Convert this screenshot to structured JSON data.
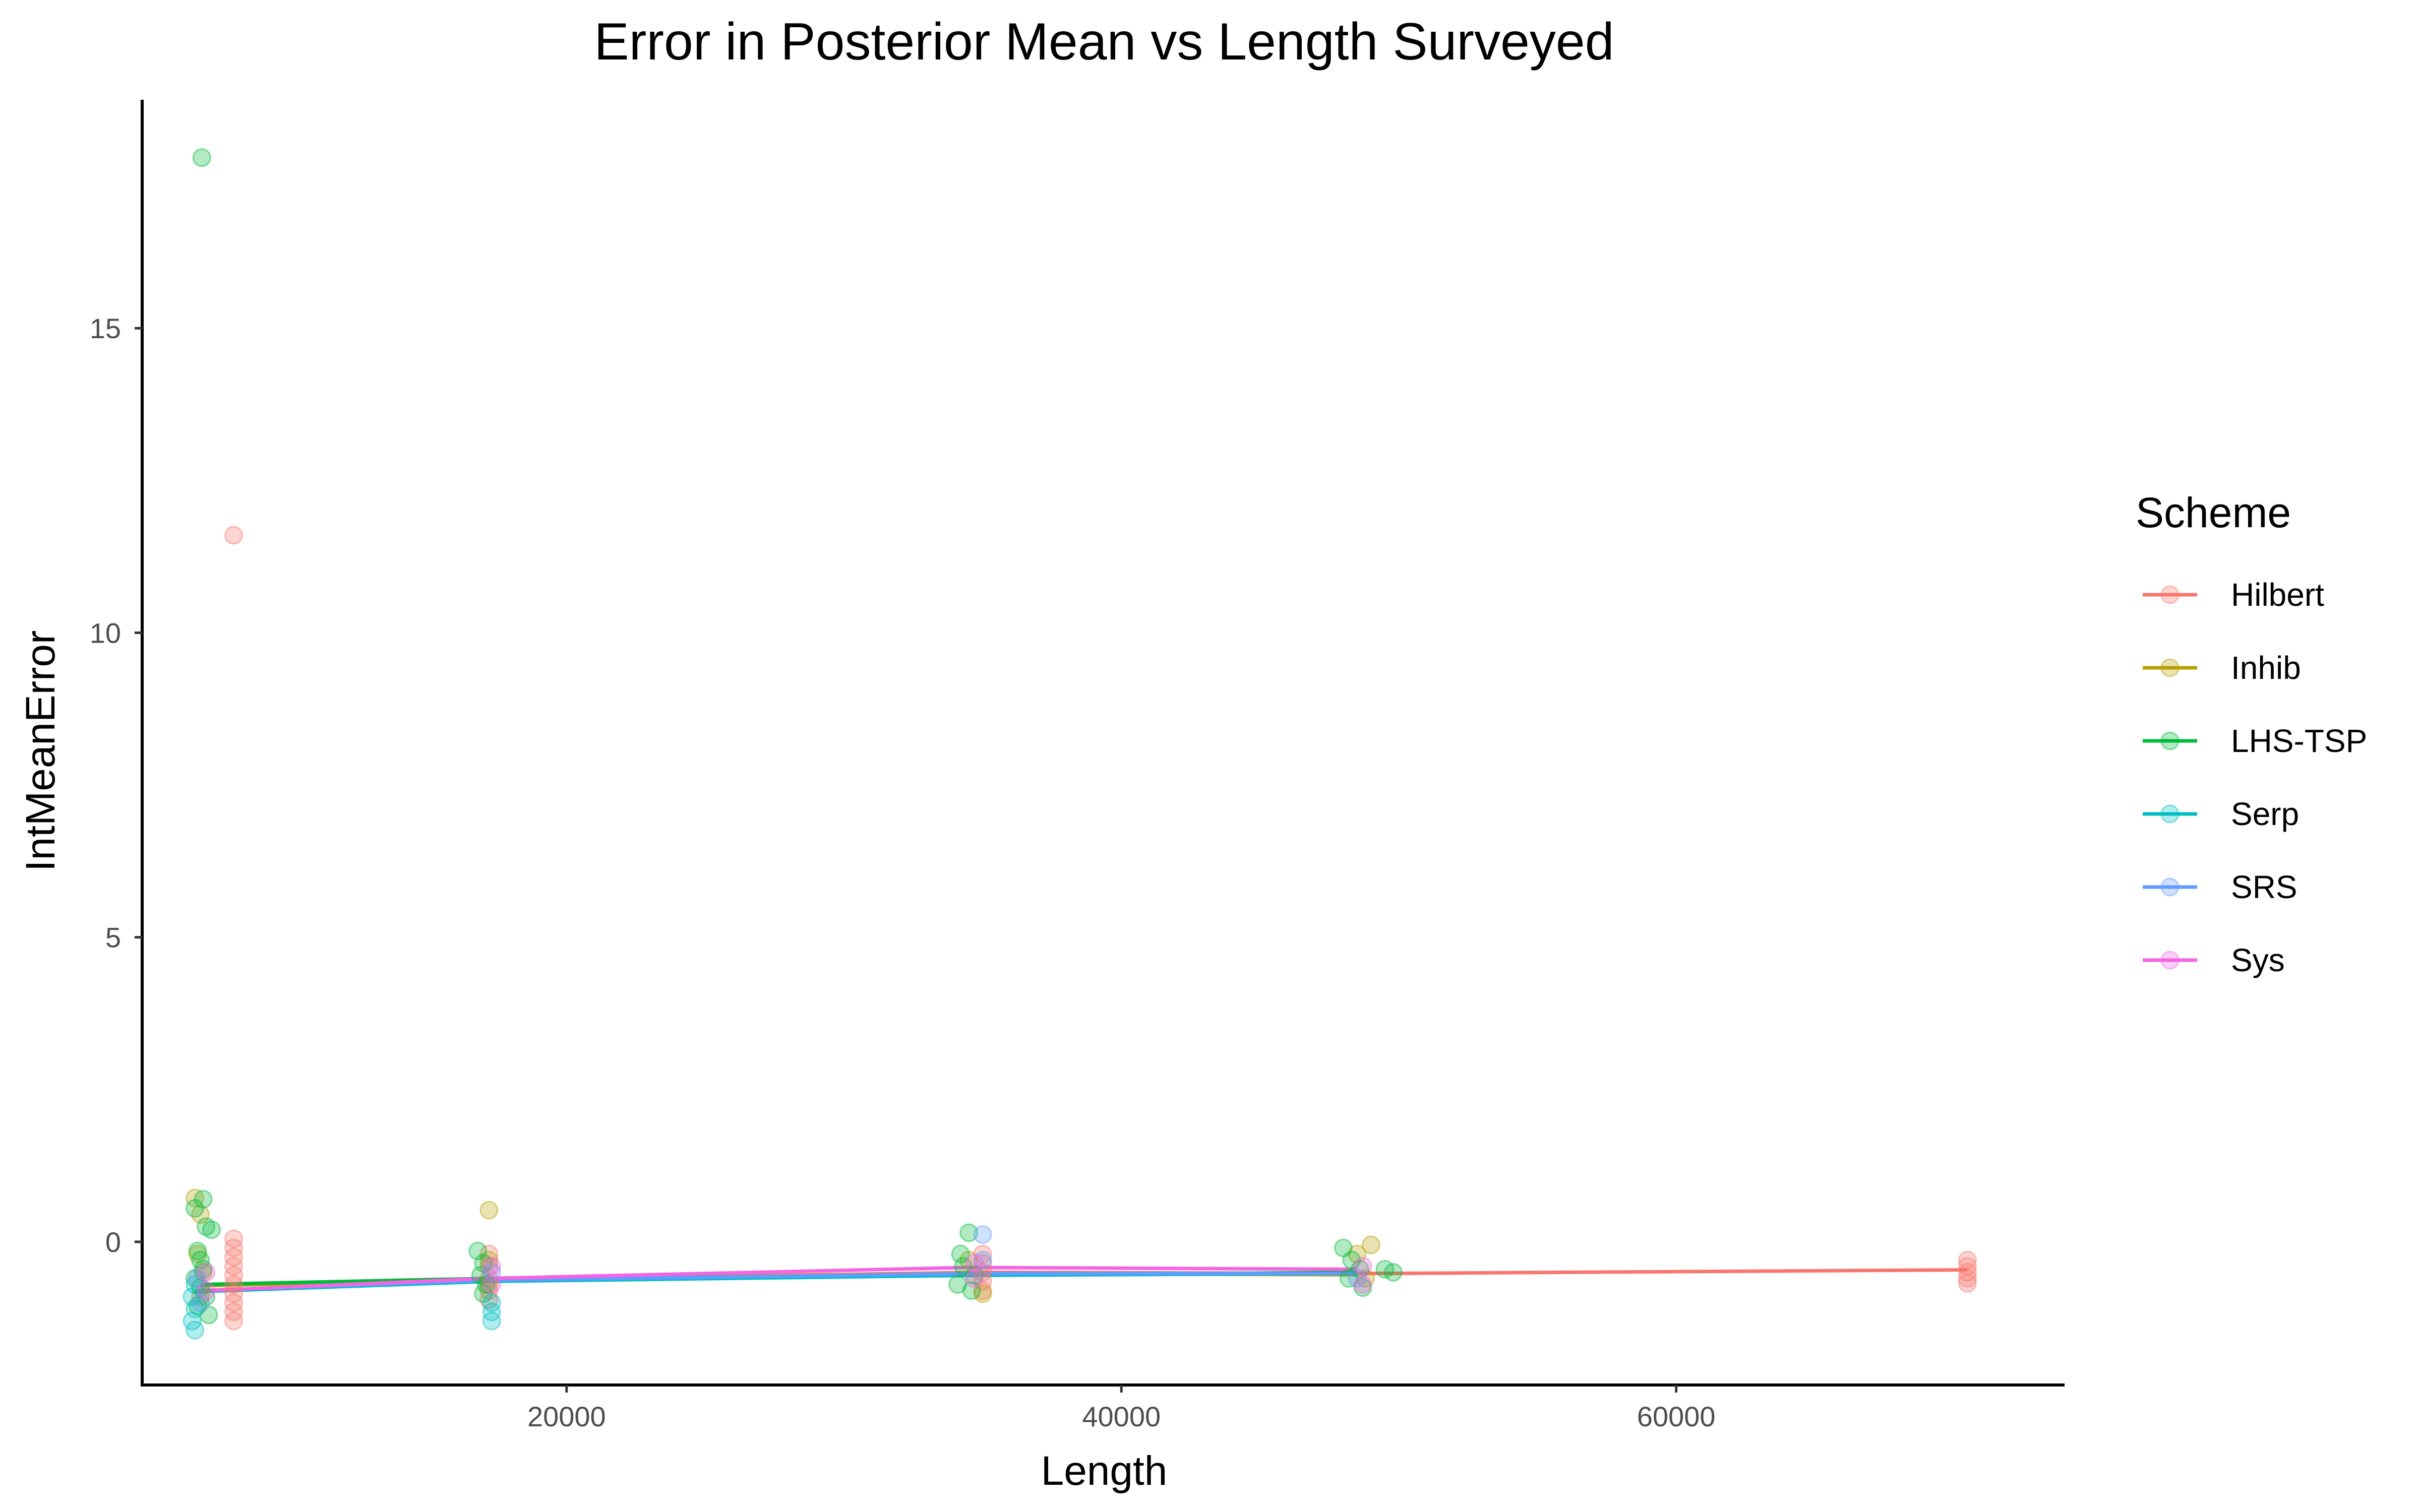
{
  "chart_data": {
    "type": "scatter",
    "title": "Error in Posterior Mean vs Length Surveyed",
    "xlabel": "Length",
    "ylabel": "IntMeanError",
    "xlim": [
      4700,
      74000
    ],
    "ylim": [
      -2.35,
      18.75
    ],
    "xticks": [
      20000,
      40000,
      60000
    ],
    "yticks": [
      0,
      5,
      10,
      15
    ],
    "xtick_labels": [
      "20000",
      "40000",
      "60000"
    ],
    "ytick_labels": [
      "0",
      "5",
      "10",
      "15"
    ],
    "grid": false,
    "legend": {
      "title": "Scheme",
      "position": "right"
    },
    "series": [
      {
        "name": "Hilbert",
        "color": "#F8766D",
        "line": [
          [
            8000,
            -0.78
          ],
          [
            17200,
            -0.62
          ],
          [
            35000,
            -0.5
          ],
          [
            49000,
            -0.52
          ],
          [
            70500,
            -0.46
          ]
        ],
        "points": [
          [
            8000,
            11.6
          ],
          [
            8000,
            0.05
          ],
          [
            8000,
            -0.1
          ],
          [
            8000,
            -0.25
          ],
          [
            8000,
            -0.4
          ],
          [
            8000,
            -0.55
          ],
          [
            8000,
            -0.7
          ],
          [
            8000,
            -0.85
          ],
          [
            8000,
            -1.0
          ],
          [
            8000,
            -1.15
          ],
          [
            8000,
            -1.3
          ],
          [
            17200,
            -0.2
          ],
          [
            17200,
            -0.4
          ],
          [
            17200,
            -0.6
          ],
          [
            17200,
            -0.8
          ],
          [
            17200,
            -0.95
          ],
          [
            35000,
            -0.2
          ],
          [
            35000,
            -0.35
          ],
          [
            35000,
            -0.5
          ],
          [
            35000,
            -0.65
          ],
          [
            35000,
            -0.8
          ],
          [
            70500,
            -0.3
          ],
          [
            70500,
            -0.4
          ],
          [
            70500,
            -0.5
          ],
          [
            70500,
            -0.6
          ],
          [
            70500,
            -0.68
          ]
        ]
      },
      {
        "name": "Inhib",
        "color": "#B79F00",
        "line": [
          [
            6800,
            -0.72
          ],
          [
            17200,
            -0.62
          ],
          [
            34500,
            -0.52
          ],
          [
            48500,
            -0.54
          ]
        ],
        "points": [
          [
            6600,
            0.72
          ],
          [
            6800,
            0.45
          ],
          [
            6700,
            -0.2
          ],
          [
            6900,
            -0.5
          ],
          [
            6800,
            -0.9
          ],
          [
            17200,
            0.52
          ],
          [
            17200,
            -0.3
          ],
          [
            17200,
            -0.7
          ],
          [
            34500,
            -0.3
          ],
          [
            35000,
            -0.85
          ],
          [
            48500,
            -0.2
          ],
          [
            49000,
            -0.05
          ],
          [
            48800,
            -0.6
          ]
        ]
      },
      {
        "name": "LHS-TSP",
        "color": "#00BA38",
        "line": [
          [
            6800,
            -0.7
          ],
          [
            17200,
            -0.6
          ],
          [
            34500,
            -0.55
          ],
          [
            48500,
            -0.5
          ]
        ],
        "points": [
          [
            6850,
            17.8
          ],
          [
            6900,
            0.7
          ],
          [
            6600,
            0.55
          ],
          [
            7000,
            0.25
          ],
          [
            7200,
            0.2
          ],
          [
            6700,
            -0.15
          ],
          [
            6800,
            -0.3
          ],
          [
            6900,
            -0.45
          ],
          [
            6600,
            -0.6
          ],
          [
            6800,
            -0.75
          ],
          [
            7000,
            -0.9
          ],
          [
            6700,
            -1.05
          ],
          [
            7100,
            -1.2
          ],
          [
            16800,
            -0.15
          ],
          [
            17000,
            -0.35
          ],
          [
            16900,
            -0.55
          ],
          [
            17100,
            -0.7
          ],
          [
            17000,
            -0.85
          ],
          [
            34200,
            -0.2
          ],
          [
            34500,
            0.15
          ],
          [
            34300,
            -0.4
          ],
          [
            34700,
            -0.55
          ],
          [
            34100,
            -0.7
          ],
          [
            34600,
            -0.8
          ],
          [
            48000,
            -0.1
          ],
          [
            48300,
            -0.3
          ],
          [
            48600,
            -0.45
          ],
          [
            48200,
            -0.6
          ],
          [
            48700,
            -0.75
          ],
          [
            49500,
            -0.45
          ],
          [
            49800,
            -0.5
          ]
        ]
      },
      {
        "name": "Serp",
        "color": "#00BFC4",
        "line": [
          [
            6600,
            -0.82
          ],
          [
            17200,
            -0.65
          ],
          [
            34500,
            -0.55
          ],
          [
            48500,
            -0.52
          ]
        ],
        "points": [
          [
            6600,
            -0.7
          ],
          [
            6500,
            -0.9
          ],
          [
            6600,
            -1.1
          ],
          [
            6500,
            -1.3
          ],
          [
            6600,
            -1.45
          ],
          [
            17300,
            -1.0
          ],
          [
            17300,
            -1.15
          ],
          [
            17300,
            -1.3
          ]
        ]
      },
      {
        "name": "SRS",
        "color": "#619CFF",
        "line": [
          [
            6700,
            -0.8
          ],
          [
            17200,
            -0.63
          ],
          [
            34800,
            -0.52
          ],
          [
            48500,
            -0.52
          ]
        ],
        "points": [
          [
            6700,
            -0.6
          ],
          [
            6800,
            -1.0
          ],
          [
            17300,
            -0.5
          ],
          [
            35000,
            0.12
          ],
          [
            35000,
            -0.3
          ],
          [
            48500,
            -0.6
          ]
        ]
      },
      {
        "name": "Sys",
        "color": "#F564E3",
        "line": [
          [
            7000,
            -0.8
          ],
          [
            17200,
            -0.6
          ],
          [
            34500,
            -0.42
          ],
          [
            48500,
            -0.45
          ]
        ],
        "points": [
          [
            7000,
            -0.5
          ],
          [
            7000,
            -0.8
          ],
          [
            17300,
            -0.4
          ],
          [
            17300,
            -0.7
          ],
          [
            34700,
            -0.35
          ],
          [
            34700,
            -0.6
          ],
          [
            48700,
            -0.4
          ],
          [
            48700,
            -0.7
          ]
        ]
      }
    ]
  }
}
